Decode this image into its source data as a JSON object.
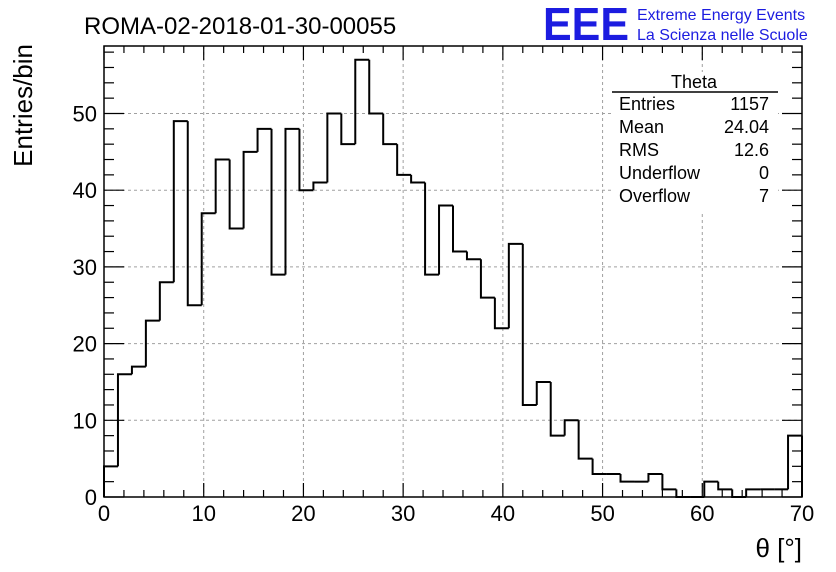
{
  "chart_data": {
    "type": "histogram",
    "title": "ROMA-02-2018-01-30-00055",
    "xlabel": "θ [°]",
    "ylabel": "Entries/bin",
    "xlim": [
      0,
      70
    ],
    "ylim": [
      0,
      58.8
    ],
    "grid": true,
    "xticks": [
      0,
      10,
      20,
      30,
      40,
      50,
      60,
      70
    ],
    "yticks": [
      0,
      10,
      20,
      30,
      40,
      50
    ],
    "bin_width": 1.4,
    "bin_edges_start": 0,
    "values": [
      4,
      16,
      17,
      23,
      28,
      49,
      25,
      37,
      44,
      35,
      45,
      48,
      29,
      48,
      40,
      41,
      50,
      46,
      57,
      50,
      46,
      42,
      41,
      29,
      38,
      32,
      31,
      26,
      22,
      33,
      12,
      15,
      8,
      10,
      5,
      3,
      3,
      2,
      2,
      3,
      1,
      0,
      0,
      2,
      1,
      0,
      1,
      1,
      1,
      8
    ],
    "stats_box": {
      "title": "Theta",
      "rows": [
        {
          "label": "Entries",
          "value": "1157"
        },
        {
          "label": "Mean",
          "value": "24.04"
        },
        {
          "label": "RMS",
          "value": "12.6"
        },
        {
          "label": "Underflow",
          "value": "0"
        },
        {
          "label": "Overflow",
          "value": "7"
        }
      ]
    },
    "legend_placement": "top-right"
  },
  "logo": {
    "text": "EEE",
    "line1": "Extreme Energy Events",
    "line2": "La Scienza nelle Scuole",
    "color": "#1c1ce0"
  },
  "colors": {
    "line": "#000000",
    "grid": "#a0a0a0"
  }
}
